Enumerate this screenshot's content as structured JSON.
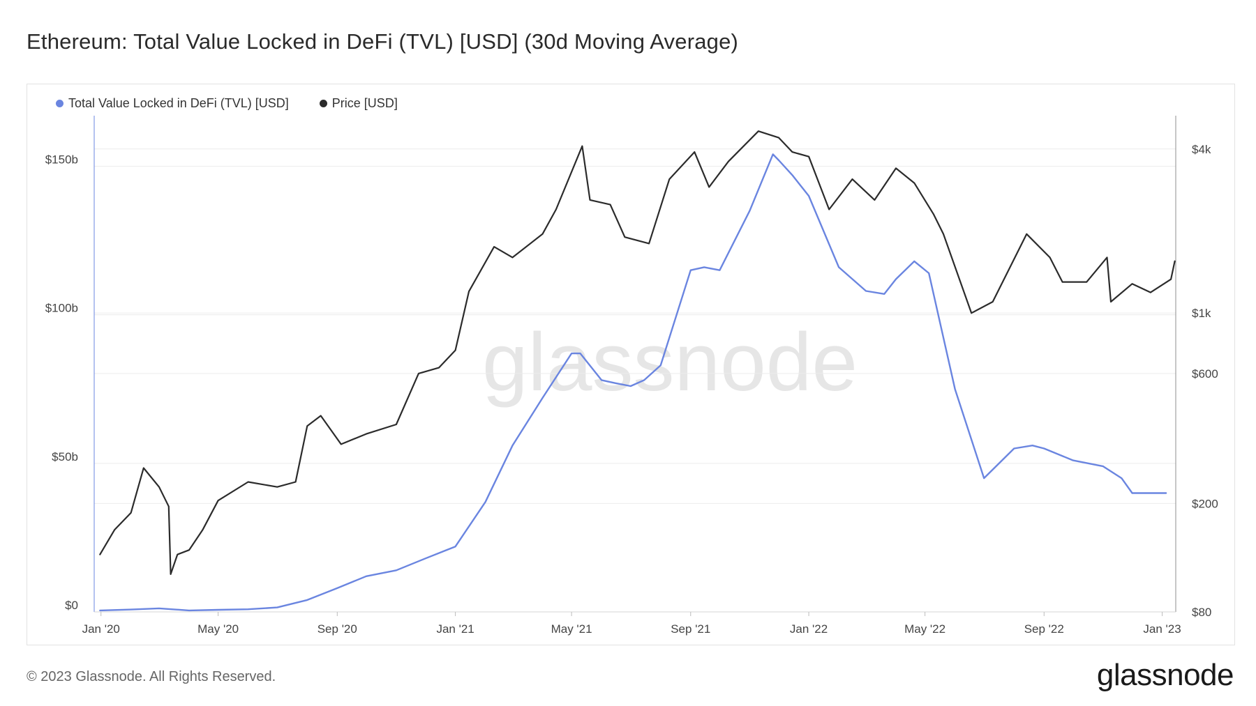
{
  "title": "Ethereum: Total Value Locked in DeFi (TVL) [USD] (30d Moving Average)",
  "footer": "© 2023 Glassnode. All Rights Reserved.",
  "brand": "glassnode",
  "watermark": "glassnode",
  "colors": {
    "tvl": "#6a85e0",
    "price": "#2b2b2b",
    "grid": "#ececec",
    "axis": "#8c8c8c"
  },
  "chart_data": {
    "type": "line",
    "title": "Ethereum: Total Value Locked in DeFi (TVL) [USD] (30d Moving Average)",
    "legend_position": "top-left",
    "grid": true,
    "x_range": [
      "2019-12-25",
      "2023-01-15"
    ],
    "x_ticks": [
      {
        "date": "2020-01-01",
        "label": "Jan '20"
      },
      {
        "date": "2020-05-01",
        "label": "May '20"
      },
      {
        "date": "2020-09-01",
        "label": "Sep '20"
      },
      {
        "date": "2021-01-01",
        "label": "Jan '21"
      },
      {
        "date": "2021-05-01",
        "label": "May '21"
      },
      {
        "date": "2021-09-01",
        "label": "Sep '21"
      },
      {
        "date": "2022-01-01",
        "label": "Jan '22"
      },
      {
        "date": "2022-05-01",
        "label": "May '22"
      },
      {
        "date": "2022-09-01",
        "label": "Sep '22"
      },
      {
        "date": "2023-01-01",
        "label": "Jan '23"
      }
    ],
    "y_left": {
      "scale": "linear",
      "range": [
        0,
        167
      ],
      "ticks": [
        {
          "value": 0,
          "label": "$0"
        },
        {
          "value": 50,
          "label": "$50b"
        },
        {
          "value": 100,
          "label": "$100b"
        },
        {
          "value": 150,
          "label": "$150b"
        }
      ]
    },
    "y_right": {
      "scale": "log",
      "range": [
        80,
        5300
      ],
      "ticks": [
        {
          "value": 80,
          "label": "$80"
        },
        {
          "value": 200,
          "label": "$200"
        },
        {
          "value": 600,
          "label": "$600"
        },
        {
          "value": 1000,
          "label": "$1k"
        },
        {
          "value": 4000,
          "label": "$4k"
        }
      ]
    },
    "series": [
      {
        "name": "Total Value Locked in DeFi (TVL) [USD]",
        "axis": "left",
        "unit": "billion USD",
        "points": [
          [
            "2019-12-31",
            0.5
          ],
          [
            "2020-02-01",
            0.8
          ],
          [
            "2020-03-01",
            1.2
          ],
          [
            "2020-04-01",
            0.5
          ],
          [
            "2020-05-01",
            0.7
          ],
          [
            "2020-06-01",
            0.9
          ],
          [
            "2020-07-01",
            1.5
          ],
          [
            "2020-08-01",
            4
          ],
          [
            "2020-09-01",
            8
          ],
          [
            "2020-10-01",
            12
          ],
          [
            "2020-11-01",
            14
          ],
          [
            "2020-12-01",
            18
          ],
          [
            "2021-01-01",
            22
          ],
          [
            "2021-02-01",
            37
          ],
          [
            "2021-03-01",
            56
          ],
          [
            "2021-04-01",
            72
          ],
          [
            "2021-05-01",
            87
          ],
          [
            "2021-05-10",
            87
          ],
          [
            "2021-06-01",
            78
          ],
          [
            "2021-06-15",
            77
          ],
          [
            "2021-07-01",
            76
          ],
          [
            "2021-07-15",
            78
          ],
          [
            "2021-08-01",
            83
          ],
          [
            "2021-09-01",
            115
          ],
          [
            "2021-09-15",
            116
          ],
          [
            "2021-10-01",
            115
          ],
          [
            "2021-11-01",
            135
          ],
          [
            "2021-11-25",
            154
          ],
          [
            "2021-12-01",
            152
          ],
          [
            "2021-12-15",
            147
          ],
          [
            "2022-01-01",
            140
          ],
          [
            "2022-02-01",
            116
          ],
          [
            "2022-03-01",
            108
          ],
          [
            "2022-03-20",
            107
          ],
          [
            "2022-04-01",
            112
          ],
          [
            "2022-04-20",
            118
          ],
          [
            "2022-05-05",
            114
          ],
          [
            "2022-06-01",
            75
          ],
          [
            "2022-07-01",
            45
          ],
          [
            "2022-08-01",
            55
          ],
          [
            "2022-08-20",
            56
          ],
          [
            "2022-09-01",
            55
          ],
          [
            "2022-10-01",
            51
          ],
          [
            "2022-11-01",
            49
          ],
          [
            "2022-11-20",
            45
          ],
          [
            "2022-12-01",
            40
          ],
          [
            "2022-12-15",
            40
          ],
          [
            "2023-01-05",
            40
          ]
        ]
      },
      {
        "name": "Price [USD]",
        "axis": "right",
        "unit": "USD",
        "points": [
          [
            "2019-12-31",
            130
          ],
          [
            "2020-01-15",
            160
          ],
          [
            "2020-02-01",
            185
          ],
          [
            "2020-02-14",
            270
          ],
          [
            "2020-03-01",
            230
          ],
          [
            "2020-03-11",
            195
          ],
          [
            "2020-03-13",
            110
          ],
          [
            "2020-03-20",
            130
          ],
          [
            "2020-04-01",
            135
          ],
          [
            "2020-04-15",
            160
          ],
          [
            "2020-05-01",
            205
          ],
          [
            "2020-06-01",
            240
          ],
          [
            "2020-07-01",
            230
          ],
          [
            "2020-07-20",
            240
          ],
          [
            "2020-08-01",
            385
          ],
          [
            "2020-08-15",
            420
          ],
          [
            "2020-09-05",
            330
          ],
          [
            "2020-10-01",
            360
          ],
          [
            "2020-11-01",
            390
          ],
          [
            "2020-11-24",
            600
          ],
          [
            "2020-12-15",
            630
          ],
          [
            "2021-01-01",
            730
          ],
          [
            "2021-01-15",
            1200
          ],
          [
            "2021-02-10",
            1750
          ],
          [
            "2021-03-01",
            1600
          ],
          [
            "2021-04-01",
            1950
          ],
          [
            "2021-04-15",
            2400
          ],
          [
            "2021-05-12",
            4100
          ],
          [
            "2021-05-20",
            2600
          ],
          [
            "2021-06-10",
            2500
          ],
          [
            "2021-06-25",
            1900
          ],
          [
            "2021-07-20",
            1800
          ],
          [
            "2021-08-10",
            3100
          ],
          [
            "2021-09-05",
            3900
          ],
          [
            "2021-09-20",
            2900
          ],
          [
            "2021-10-10",
            3600
          ],
          [
            "2021-11-10",
            4650
          ],
          [
            "2021-12-01",
            4400
          ],
          [
            "2021-12-15",
            3900
          ],
          [
            "2022-01-01",
            3750
          ],
          [
            "2022-01-22",
            2400
          ],
          [
            "2022-02-15",
            3100
          ],
          [
            "2022-03-10",
            2600
          ],
          [
            "2022-04-01",
            3400
          ],
          [
            "2022-04-20",
            3000
          ],
          [
            "2022-05-10",
            2300
          ],
          [
            "2022-05-20",
            1950
          ],
          [
            "2022-06-18",
            1000
          ],
          [
            "2022-07-10",
            1100
          ],
          [
            "2022-08-14",
            1950
          ],
          [
            "2022-09-07",
            1600
          ],
          [
            "2022-09-20",
            1300
          ],
          [
            "2022-10-15",
            1300
          ],
          [
            "2022-11-05",
            1600
          ],
          [
            "2022-11-09",
            1100
          ],
          [
            "2022-12-01",
            1280
          ],
          [
            "2022-12-20",
            1190
          ],
          [
            "2023-01-10",
            1330
          ],
          [
            "2023-01-14",
            1550
          ]
        ]
      }
    ]
  }
}
